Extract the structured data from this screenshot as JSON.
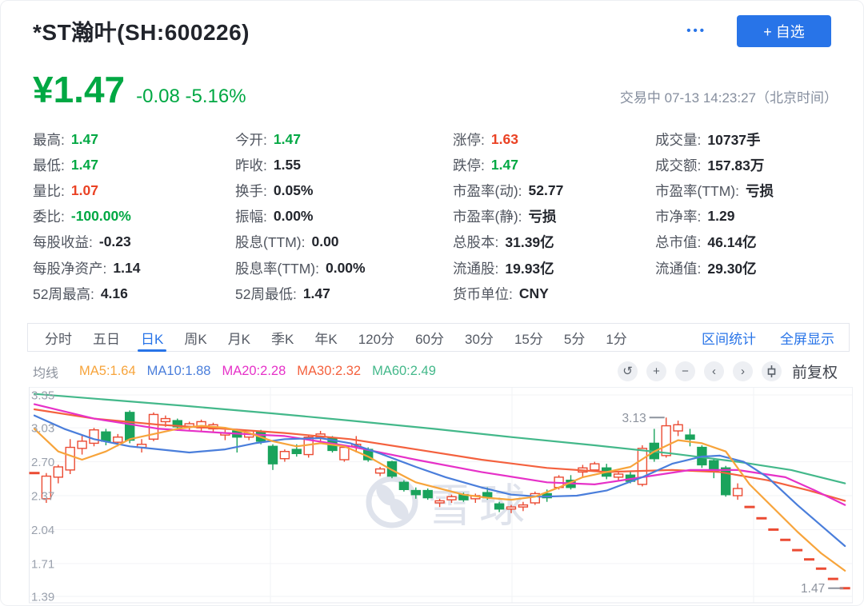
{
  "header": {
    "title": "*ST瀚叶(SH:600226)",
    "more_label": "•••",
    "watch_button": "+ 自选"
  },
  "quote": {
    "price": "¥1.47",
    "change": "-0.08 -5.16%",
    "status": "交易中 07-13 14:23:27（北京时间）",
    "up_color": "#ea4224",
    "down_color": "#00a843"
  },
  "stats": {
    "columns": [
      {
        "items": [
          {
            "name": "stat-high",
            "label": "最高:",
            "value": "1.47",
            "c": "g"
          },
          {
            "name": "stat-low",
            "label": "最低:",
            "value": "1.47",
            "c": "g"
          },
          {
            "name": "stat-volume-ratio",
            "label": "量比:",
            "value": "1.07",
            "c": "r"
          },
          {
            "name": "stat-bid-ask-ratio",
            "label": "委比:",
            "value": "-100.00%",
            "c": "g"
          },
          {
            "name": "stat-eps",
            "label": "每股收益:",
            "value": "-0.23",
            "c": ""
          },
          {
            "name": "stat-net-asset-per-share",
            "label": "每股净资产:",
            "value": "1.14",
            "c": ""
          },
          {
            "name": "stat-52w-high",
            "label": "52周最高:",
            "value": "4.16",
            "c": ""
          }
        ]
      },
      {
        "items": [
          {
            "name": "stat-open",
            "label": "今开:",
            "value": "1.47",
            "c": "g"
          },
          {
            "name": "stat-prev-close",
            "label": "昨收:",
            "value": "1.55",
            "c": ""
          },
          {
            "name": "stat-turnover",
            "label": "换手:",
            "value": "0.05%",
            "c": ""
          },
          {
            "name": "stat-amplitude",
            "label": "振幅:",
            "value": "0.00%",
            "c": ""
          },
          {
            "name": "stat-dividend-ttm",
            "label": "股息(TTM):",
            "value": "0.00",
            "c": ""
          },
          {
            "name": "stat-dividend-yield-ttm",
            "label": "股息率(TTM):",
            "value": "0.00%",
            "c": ""
          },
          {
            "name": "stat-52w-low",
            "label": "52周最低:",
            "value": "1.47",
            "c": ""
          }
        ]
      },
      {
        "items": [
          {
            "name": "stat-limit-up",
            "label": "涨停:",
            "value": "1.63",
            "c": "r"
          },
          {
            "name": "stat-limit-down",
            "label": "跌停:",
            "value": "1.47",
            "c": "g"
          },
          {
            "name": "stat-pe-dynamic",
            "label": "市盈率(动):",
            "value": "52.77",
            "c": ""
          },
          {
            "name": "stat-pe-static",
            "label": "市盈率(静):",
            "value": "亏损",
            "c": ""
          },
          {
            "name": "stat-total-shares",
            "label": "总股本:",
            "value": "31.39亿",
            "c": ""
          },
          {
            "name": "stat-float-shares",
            "label": "流通股:",
            "value": "19.93亿",
            "c": ""
          },
          {
            "name": "stat-currency",
            "label": "货币单位:",
            "value": "CNY",
            "c": ""
          }
        ]
      },
      {
        "items": [
          {
            "name": "stat-volume",
            "label": "成交量:",
            "value": "10737手",
            "c": ""
          },
          {
            "name": "stat-amount",
            "label": "成交额:",
            "value": "157.83万",
            "c": ""
          },
          {
            "name": "stat-pe-ttm",
            "label": "市盈率(TTM):",
            "value": "亏损",
            "c": ""
          },
          {
            "name": "stat-pb",
            "label": "市净率:",
            "value": "1.29",
            "c": ""
          },
          {
            "name": "stat-market-cap",
            "label": "总市值:",
            "value": "46.14亿",
            "c": ""
          },
          {
            "name": "stat-float-cap",
            "label": "流通值:",
            "value": "29.30亿",
            "c": ""
          }
        ]
      }
    ]
  },
  "tabs": {
    "items": [
      {
        "name": "tab-minute",
        "label": "分时",
        "active": false
      },
      {
        "name": "tab-5day",
        "label": "五日",
        "active": false
      },
      {
        "name": "tab-daily-k",
        "label": "日K",
        "active": true
      },
      {
        "name": "tab-weekly-k",
        "label": "周K",
        "active": false
      },
      {
        "name": "tab-monthly-k",
        "label": "月K",
        "active": false
      },
      {
        "name": "tab-quarterly-k",
        "label": "季K",
        "active": false
      },
      {
        "name": "tab-yearly-k",
        "label": "年K",
        "active": false
      },
      {
        "name": "tab-120min",
        "label": "120分",
        "active": false
      },
      {
        "name": "tab-60min",
        "label": "60分",
        "active": false
      },
      {
        "name": "tab-30min",
        "label": "30分",
        "active": false
      },
      {
        "name": "tab-15min",
        "label": "15分",
        "active": false
      },
      {
        "name": "tab-5min",
        "label": "5分",
        "active": false
      },
      {
        "name": "tab-1min",
        "label": "1分",
        "active": false
      }
    ],
    "links": [
      {
        "name": "range-stats-link",
        "label": "区间统计"
      },
      {
        "name": "fullscreen-link",
        "label": "全屏显示"
      }
    ]
  },
  "ma_bar": {
    "prefix": "均线",
    "items": [
      {
        "label": "MA5:1.64",
        "color": "#f7a43b"
      },
      {
        "label": "MA10:1.88",
        "color": "#4a7edb"
      },
      {
        "label": "MA20:2.28",
        "color": "#e631c8"
      },
      {
        "label": "MA30:2.32",
        "color": "#f4613e"
      },
      {
        "label": "MA60:2.49",
        "color": "#43b88a"
      }
    ],
    "controls": [
      {
        "name": "undo-button",
        "icon_name": "undo-icon",
        "icon": "↺"
      },
      {
        "name": "zoom-in-button",
        "icon_name": "plus-icon",
        "icon": "+"
      },
      {
        "name": "zoom-out-button",
        "icon_name": "minus-icon",
        "icon": "−"
      },
      {
        "name": "pan-left-button",
        "icon_name": "chevron-left-icon",
        "icon": "‹"
      },
      {
        "name": "pan-right-button",
        "icon_name": "chevron-right-icon",
        "icon": "›"
      },
      {
        "name": "candle-style-button",
        "icon_name": "candlestick-icon",
        "icon": "candle"
      }
    ],
    "adjust_label": "前复权"
  },
  "chart_data": {
    "type": "candlestick",
    "watermark": "雪球",
    "up_color": "#eb4b33",
    "down_color": "#1aa35c",
    "y_ticks": [
      3.35,
      3.03,
      2.7,
      2.37,
      2.04,
      1.71,
      1.39
    ],
    "ylim": [
      1.35,
      3.43
    ],
    "grid": true,
    "annotations": [
      {
        "text": "3.13",
        "index": 53,
        "price": 3.13
      },
      {
        "text": "1.47",
        "index": 68,
        "price": 1.47
      }
    ],
    "candles": [
      [
        2.59,
        2.6,
        2.58,
        2.59
      ],
      [
        2.34,
        2.59,
        2.3,
        2.56
      ],
      [
        2.55,
        2.67,
        2.49,
        2.65
      ],
      [
        2.62,
        2.92,
        2.58,
        2.84
      ],
      [
        2.83,
        2.96,
        2.77,
        2.9
      ],
      [
        2.88,
        3.03,
        2.85,
        3.01
      ],
      [
        2.99,
        3.02,
        2.86,
        2.9
      ],
      [
        2.89,
        2.97,
        2.85,
        2.94
      ],
      [
        3.18,
        3.2,
        2.88,
        2.91
      ],
      [
        2.84,
        2.92,
        2.79,
        2.87
      ],
      [
        2.92,
        3.18,
        2.9,
        3.16
      ],
      [
        3.09,
        3.15,
        3.04,
        3.12
      ],
      [
        3.1,
        3.12,
        3.0,
        3.04
      ],
      [
        3.04,
        3.09,
        3.01,
        3.07
      ],
      [
        3.03,
        3.11,
        3.0,
        3.09
      ],
      [
        3.02,
        3.08,
        2.99,
        3.06
      ],
      [
        2.96,
        3.01,
        2.91,
        2.98
      ],
      [
        3.0,
        3.02,
        2.79,
        2.94
      ],
      [
        2.94,
        3.01,
        2.91,
        3.0
      ],
      [
        2.99,
        3.01,
        2.87,
        2.9
      ],
      [
        2.85,
        2.87,
        2.62,
        2.68
      ],
      [
        2.73,
        2.82,
        2.7,
        2.8
      ],
      [
        2.82,
        2.87,
        2.75,
        2.78
      ],
      [
        2.77,
        2.96,
        2.74,
        2.94
      ],
      [
        2.94,
        3.0,
        2.89,
        2.97
      ],
      [
        2.93,
        2.95,
        2.79,
        2.81
      ],
      [
        2.72,
        2.85,
        2.7,
        2.84
      ],
      [
        2.85,
        2.95,
        2.79,
        2.87
      ],
      [
        2.82,
        2.84,
        2.7,
        2.72
      ],
      [
        2.59,
        2.65,
        2.56,
        2.63
      ],
      [
        2.7,
        2.71,
        2.54,
        2.56
      ],
      [
        2.5,
        2.52,
        2.41,
        2.43
      ],
      [
        2.42,
        2.45,
        2.34,
        2.38
      ],
      [
        2.42,
        2.44,
        2.33,
        2.35
      ],
      [
        2.3,
        2.34,
        2.26,
        2.32
      ],
      [
        2.33,
        2.38,
        2.3,
        2.36
      ],
      [
        2.38,
        2.4,
        2.31,
        2.33
      ],
      [
        2.34,
        2.39,
        2.3,
        2.37
      ],
      [
        2.4,
        2.45,
        2.33,
        2.35
      ],
      [
        2.29,
        2.31,
        2.21,
        2.24
      ],
      [
        2.24,
        2.28,
        2.2,
        2.26
      ],
      [
        2.26,
        2.31,
        2.22,
        2.28
      ],
      [
        2.3,
        2.41,
        2.28,
        2.39
      ],
      [
        2.39,
        2.43,
        2.31,
        2.35
      ],
      [
        2.45,
        2.57,
        2.43,
        2.55
      ],
      [
        2.52,
        2.57,
        2.43,
        2.45
      ],
      [
        2.6,
        2.67,
        2.55,
        2.64
      ],
      [
        2.62,
        2.7,
        2.6,
        2.68
      ],
      [
        2.64,
        2.68,
        2.53,
        2.56
      ],
      [
        2.55,
        2.6,
        2.51,
        2.58
      ],
      [
        2.57,
        2.6,
        2.49,
        2.51
      ],
      [
        2.48,
        2.86,
        2.46,
        2.83
      ],
      [
        2.88,
        3.02,
        2.7,
        2.73
      ],
      [
        2.76,
        3.13,
        2.74,
        3.05
      ],
      [
        3.0,
        3.1,
        2.95,
        3.06
      ],
      [
        2.96,
        3.02,
        2.85,
        2.92
      ],
      [
        2.84,
        2.86,
        2.64,
        2.67
      ],
      [
        2.71,
        2.73,
        2.54,
        2.61
      ],
      [
        2.64,
        2.66,
        2.36,
        2.38
      ],
      [
        2.37,
        2.49,
        2.33,
        2.44
      ],
      [
        2.26,
        2.26,
        2.26,
        2.26
      ],
      [
        2.15,
        2.15,
        2.15,
        2.15
      ],
      [
        2.04,
        2.04,
        2.04,
        2.04
      ],
      [
        1.94,
        1.94,
        1.94,
        1.94
      ],
      [
        1.84,
        1.84,
        1.84,
        1.84
      ],
      [
        1.75,
        1.75,
        1.75,
        1.75
      ],
      [
        1.66,
        1.66,
        1.66,
        1.66
      ],
      [
        1.56,
        1.56,
        1.56,
        1.56
      ],
      [
        1.47,
        1.47,
        1.47,
        1.47
      ]
    ],
    "series": [
      {
        "name": "MA60",
        "color": "#43b88a",
        "points": [
          [
            0,
            3.36
          ],
          [
            6.5,
            3.3
          ],
          [
            13,
            3.24
          ],
          [
            20,
            3.17
          ],
          [
            26.5,
            3.1
          ],
          [
            33.5,
            3.02
          ],
          [
            40,
            2.94
          ],
          [
            47,
            2.86
          ],
          [
            53.5,
            2.78
          ],
          [
            59,
            2.7
          ],
          [
            63.5,
            2.62
          ],
          [
            68,
            2.49
          ]
        ]
      },
      {
        "name": "MA30",
        "color": "#f4613e",
        "points": [
          [
            0,
            3.21
          ],
          [
            5,
            3.12
          ],
          [
            10.5,
            3.06
          ],
          [
            16,
            3.02
          ],
          [
            21,
            2.98
          ],
          [
            26.5,
            2.92
          ],
          [
            32,
            2.82
          ],
          [
            37.5,
            2.72
          ],
          [
            43,
            2.64
          ],
          [
            48,
            2.6
          ],
          [
            53.5,
            2.62
          ],
          [
            57.5,
            2.6
          ],
          [
            61.5,
            2.52
          ],
          [
            65,
            2.42
          ],
          [
            68,
            2.32
          ]
        ]
      },
      {
        "name": "MA20",
        "color": "#e631c8",
        "points": [
          [
            0,
            3.26
          ],
          [
            5,
            3.12
          ],
          [
            10.5,
            3.02
          ],
          [
            16,
            2.98
          ],
          [
            21,
            2.95
          ],
          [
            26.5,
            2.85
          ],
          [
            32,
            2.72
          ],
          [
            37.5,
            2.6
          ],
          [
            43,
            2.5
          ],
          [
            47,
            2.48
          ],
          [
            51,
            2.55
          ],
          [
            55,
            2.62
          ],
          [
            59,
            2.62
          ],
          [
            63,
            2.55
          ],
          [
            65.5,
            2.42
          ],
          [
            68,
            2.28
          ]
        ]
      },
      {
        "name": "MA10",
        "color": "#4a7edb",
        "points": [
          [
            0,
            3.15
          ],
          [
            2.5,
            3.02
          ],
          [
            5,
            2.92
          ],
          [
            8,
            2.85
          ],
          [
            10.5,
            2.82
          ],
          [
            13,
            2.79
          ],
          [
            16,
            2.82
          ],
          [
            18.5,
            2.88
          ],
          [
            21,
            2.92
          ],
          [
            24,
            2.93
          ],
          [
            26.5,
            2.88
          ],
          [
            29,
            2.78
          ],
          [
            32,
            2.65
          ],
          [
            34.5,
            2.55
          ],
          [
            37.5,
            2.45
          ],
          [
            40,
            2.38
          ],
          [
            42.5,
            2.36
          ],
          [
            45.5,
            2.37
          ],
          [
            48,
            2.42
          ],
          [
            51,
            2.55
          ],
          [
            53.5,
            2.68
          ],
          [
            56,
            2.75
          ],
          [
            57.5,
            2.76
          ],
          [
            59.5,
            2.7
          ],
          [
            61.5,
            2.55
          ],
          [
            64,
            2.28
          ],
          [
            66,
            2.08
          ],
          [
            68,
            1.88
          ]
        ]
      },
      {
        "name": "MA5",
        "color": "#f7a43b",
        "points": [
          [
            0,
            3.02
          ],
          [
            2,
            2.8
          ],
          [
            4,
            2.72
          ],
          [
            6,
            2.8
          ],
          [
            8,
            2.92
          ],
          [
            10,
            2.97
          ],
          [
            12,
            3.02
          ],
          [
            14,
            3.05
          ],
          [
            16,
            3.03
          ],
          [
            18,
            2.98
          ],
          [
            20,
            2.9
          ],
          [
            22,
            2.85
          ],
          [
            24,
            2.88
          ],
          [
            26,
            2.85
          ],
          [
            28,
            2.75
          ],
          [
            30,
            2.62
          ],
          [
            32,
            2.5
          ],
          [
            34,
            2.44
          ],
          [
            36,
            2.38
          ],
          [
            38,
            2.35
          ],
          [
            40,
            2.33
          ],
          [
            42,
            2.36
          ],
          [
            44,
            2.45
          ],
          [
            46,
            2.55
          ],
          [
            48,
            2.6
          ],
          [
            50,
            2.65
          ],
          [
            52,
            2.8
          ],
          [
            54,
            2.91
          ],
          [
            56,
            2.88
          ],
          [
            58,
            2.8
          ],
          [
            60,
            2.48
          ],
          [
            62,
            2.25
          ],
          [
            64,
            2.02
          ],
          [
            66,
            1.81
          ],
          [
            68,
            1.64
          ]
        ]
      }
    ]
  }
}
